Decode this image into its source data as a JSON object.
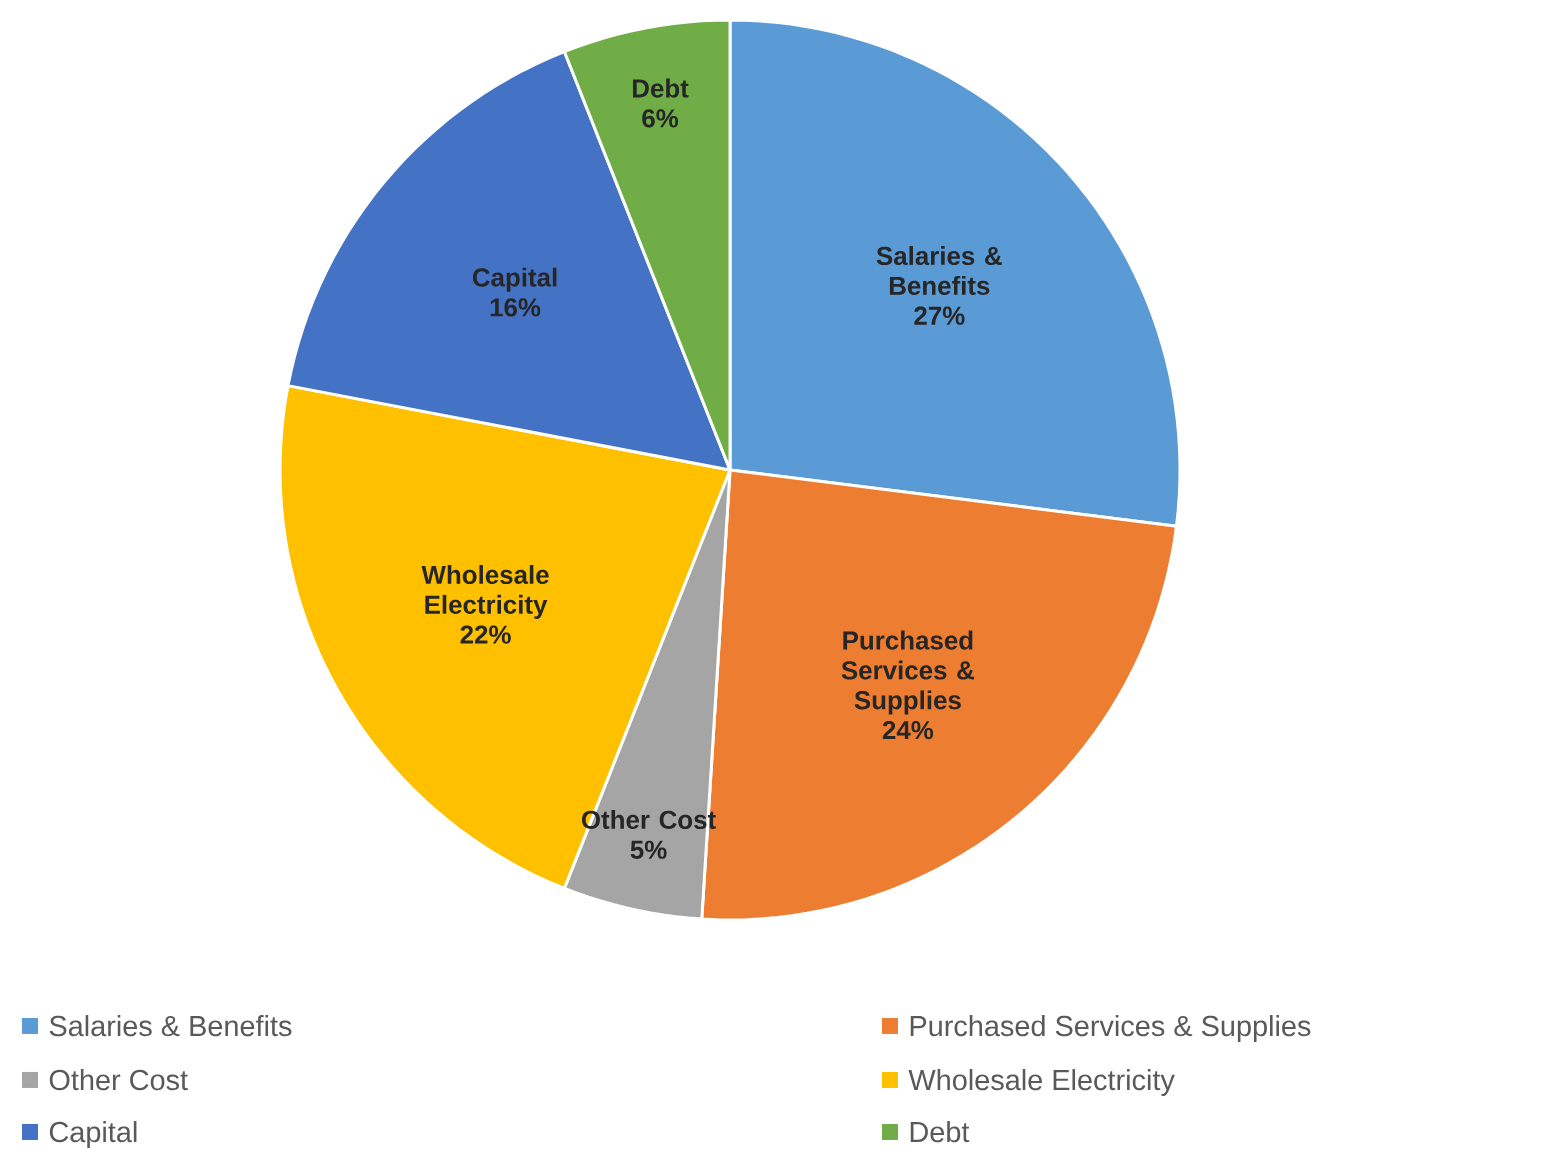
{
  "chart_data": {
    "type": "pie",
    "categories": [
      "Salaries & Benefits",
      "Purchased Services & Supplies",
      "Other Cost",
      "Wholesale Electricity",
      "Capital",
      "Debt"
    ],
    "values": [
      27,
      24,
      5,
      22,
      16,
      6
    ],
    "value_labels": [
      "27%",
      "24%",
      "5%",
      "22%",
      "16%",
      "6%"
    ],
    "colors": [
      "#5b9bd5",
      "#ed7d31",
      "#a5a5a5",
      "#ffc000",
      "#4472c4",
      "#70ad47"
    ],
    "legend": "bottom"
  }
}
